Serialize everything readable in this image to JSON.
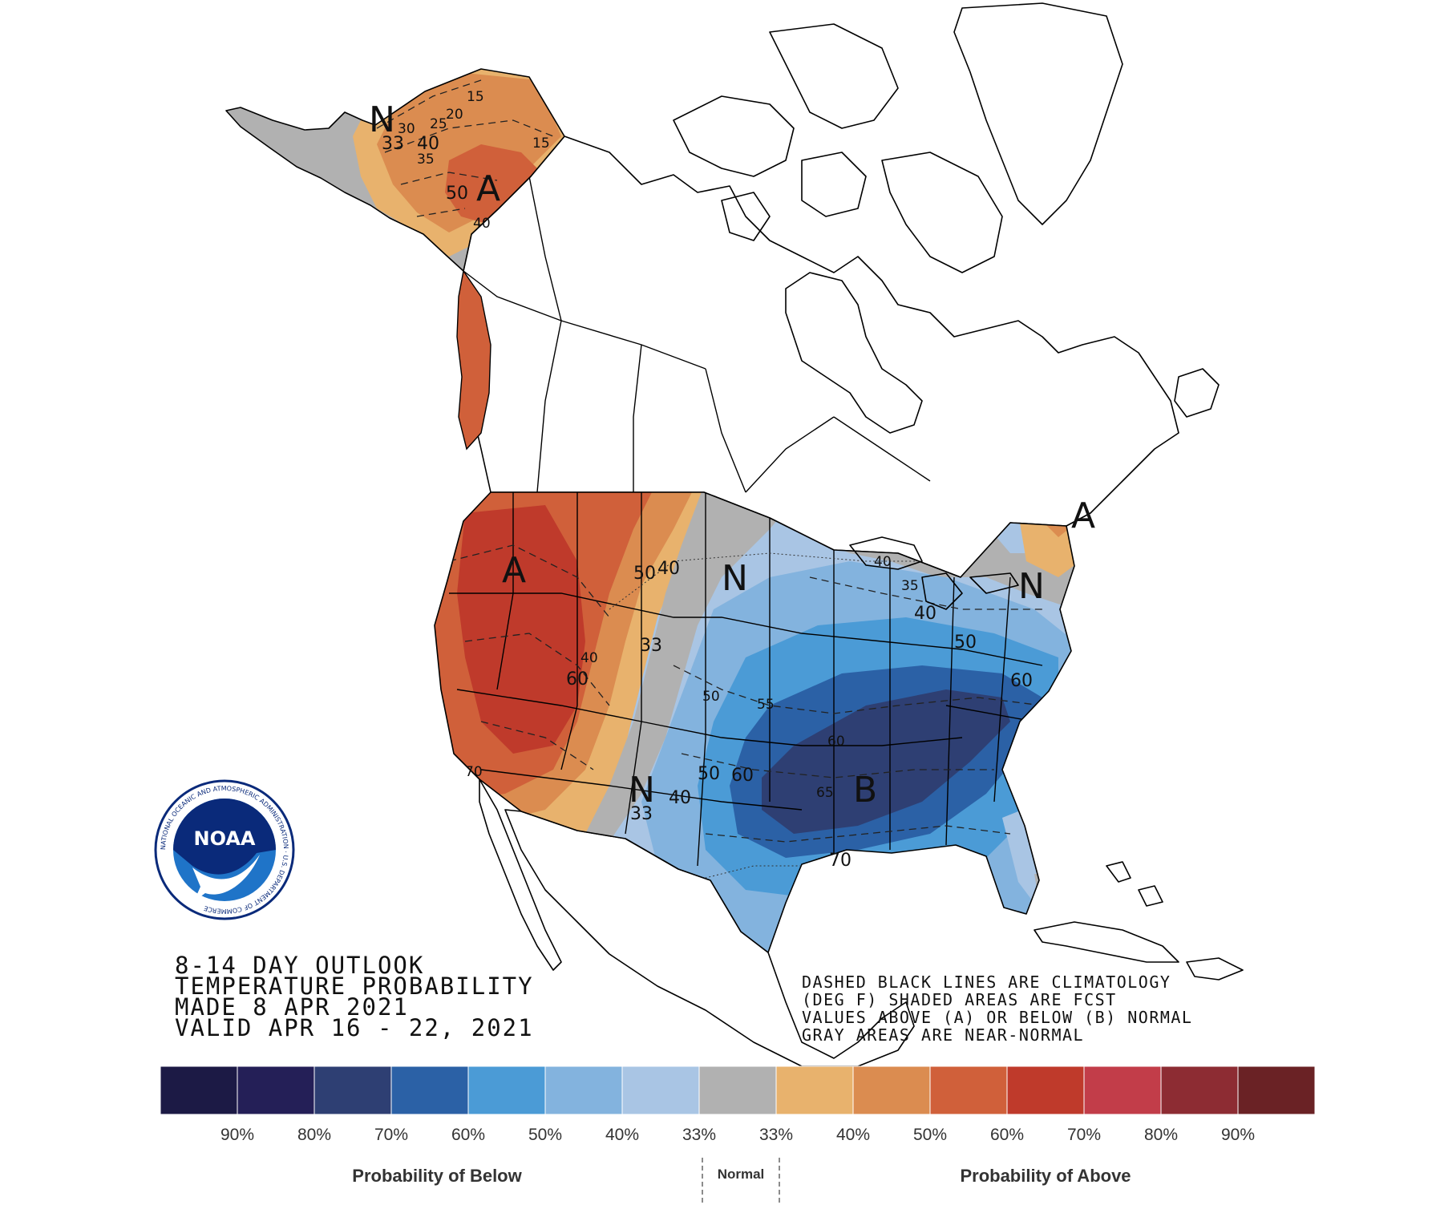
{
  "outlook": {
    "title_lines": [
      "8-14 DAY OUTLOOK",
      "TEMPERATURE PROBABILITY",
      "MADE  8 APR 2021",
      "VALID  APR 16 - 22, 2021"
    ],
    "note_lines": [
      "DASHED BLACK LINES ARE CLIMATOLOGY",
      "(DEG F) SHADED AREAS ARE FCST",
      "VALUES ABOVE (A) OR BELOW (B) NORMAL",
      "GRAY AREAS ARE NEAR-NORMAL"
    ]
  },
  "logo": {
    "text": "NOAA",
    "ring_text": "NATIONAL OCEANIC AND ATMOSPHERIC ADMINISTRATION · U.S. DEPARTMENT OF COMMERCE",
    "colors": {
      "ring": "#ffffff",
      "top": "#0a2a7a",
      "bottom": "#1f74c8",
      "gull": "#ffffff"
    }
  },
  "zone_letters": {
    "alaska_n": "N",
    "alaska_a": "A",
    "west_a": "A",
    "plains_n": "N",
    "southwest_n": "N",
    "south_b": "B",
    "northeast_a": "A",
    "northeast_n": "N"
  },
  "contour_labels": {
    "ak_15a": "15",
    "ak_20": "20",
    "ak_25": "25",
    "ak_30": "30",
    "ak_33": "33",
    "ak_40": "40",
    "ak_35": "35",
    "ak_15b": "15",
    "ak_50": "50",
    "ak_40b": "40",
    "w_50": "50",
    "w_40": "40",
    "w_33": "33",
    "w_60": "60",
    "w_40b": "40",
    "c_40": "40",
    "c_35": "35",
    "c_40b": "40",
    "c_50": "50",
    "c_60": "60",
    "c_50b": "50",
    "c_55": "55",
    "c_50c": "50",
    "c_60b": "60",
    "c_60c": "60",
    "c_65": "65",
    "c_70": "70",
    "sw_33": "33",
    "sw_40": "40",
    "w_70": "70"
  },
  "legend": {
    "swatches": [
      {
        "color": "#1c1a45"
      },
      {
        "color": "#241f57"
      },
      {
        "color": "#2e3f73"
      },
      {
        "color": "#2b61a6"
      },
      {
        "color": "#4b9bd6"
      },
      {
        "color": "#83b3de"
      },
      {
        "color": "#a9c5e4"
      },
      {
        "color": "#b1b1b1"
      },
      {
        "color": "#e8b26d"
      },
      {
        "color": "#db8c50"
      },
      {
        "color": "#d0603a"
      },
      {
        "color": "#bf3a2b"
      },
      {
        "color": "#c23d49"
      },
      {
        "color": "#8d2c33"
      },
      {
        "color": "#6a2225"
      }
    ],
    "ticks": [
      "90%",
      "80%",
      "70%",
      "60%",
      "50%",
      "40%",
      "33%",
      "33%",
      "40%",
      "50%",
      "60%",
      "70%",
      "80%",
      "90%"
    ],
    "below_label": "Probability of Below",
    "normal_label": "Normal",
    "above_label": "Probability of Above"
  }
}
